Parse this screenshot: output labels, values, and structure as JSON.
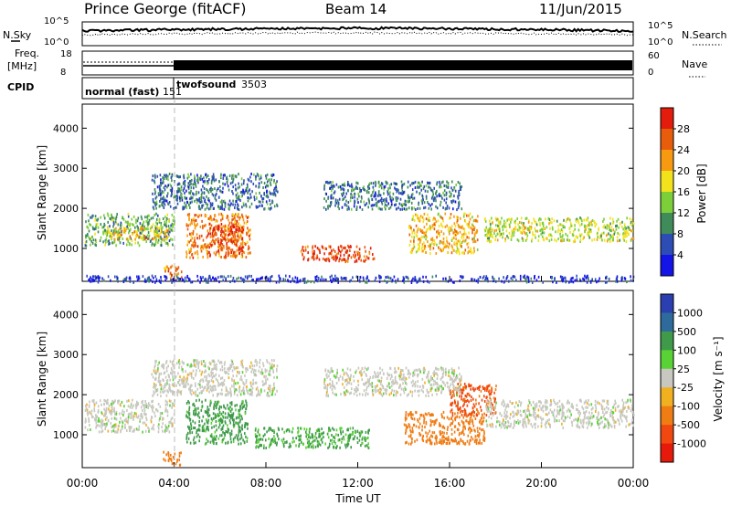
{
  "header": {
    "station": "Prince George (fitACF)",
    "beam": "Beam 14",
    "date": "11/Jun/2015"
  },
  "panels": {
    "nsky_label": "N.Sky",
    "nsearch_label": "N.Search",
    "freq_label_line1": "Freq.",
    "freq_label_line2": "[MHz]",
    "nave_label": "Nave",
    "cpid_label": "CPID",
    "noise_ticks_left": [
      "10^5",
      "10^0"
    ],
    "noise_ticks_right": [
      "10^5",
      "10^0"
    ],
    "freq_ticks": [
      "18",
      "8"
    ],
    "nave_ticks": [
      "60",
      "0"
    ],
    "cpid_programs": [
      {
        "name": "normal (fast)",
        "id": "151",
        "start_hour": 0
      },
      {
        "name": "twofsound",
        "id": "3503",
        "start_hour": 4
      }
    ]
  },
  "chart_data": [
    {
      "type": "heatmap",
      "title": "",
      "xlabel": "",
      "ylabel": "Slant Range [km]",
      "x_range_hours": [
        0,
        24
      ],
      "ylim": [
        180,
        4600
      ],
      "y_ticks": [
        "1000",
        "2000",
        "3000",
        "4000"
      ],
      "colorbar": {
        "label": "Power [dB]",
        "ticks": [
          "4",
          "8",
          "12",
          "16",
          "20",
          "24",
          "28"
        ],
        "colors": [
          "#1414e6",
          "#2d4db5",
          "#3f8c5a",
          "#7dcf3a",
          "#f2e21c",
          "#f79a12",
          "#e85d0c",
          "#e41c0c"
        ]
      },
      "regions": [
        {
          "t0": 0.1,
          "t1": 4.0,
          "r0": 1100,
          "r1": 1900,
          "value": 12
        },
        {
          "t0": 1.0,
          "t1": 3.8,
          "r0": 1250,
          "r1": 1550,
          "value": 20
        },
        {
          "t0": 3.5,
          "t1": 4.3,
          "r0": 250,
          "r1": 600,
          "value": 24
        },
        {
          "t0": 4.5,
          "t1": 7.3,
          "r0": 800,
          "r1": 1900,
          "value": 24
        },
        {
          "t0": 5.5,
          "t1": 7.0,
          "r0": 900,
          "r1": 1600,
          "value": 28
        },
        {
          "t0": 9.5,
          "t1": 12.7,
          "r0": 700,
          "r1": 1100,
          "value": 28
        },
        {
          "t0": 14.2,
          "t1": 17.2,
          "r0": 900,
          "r1": 1900,
          "value": 20
        },
        {
          "t0": 17.5,
          "t1": 24.0,
          "r0": 1200,
          "r1": 1800,
          "value": 16
        },
        {
          "t0": 3.0,
          "t1": 8.5,
          "r0": 2000,
          "r1": 2900,
          "value": 8
        },
        {
          "t0": 10.5,
          "t1": 16.5,
          "r0": 2000,
          "r1": 2700,
          "value": 8
        },
        {
          "t0": 0.1,
          "t1": 24.0,
          "r0": 180,
          "r1": 350,
          "value": 4
        }
      ]
    },
    {
      "type": "heatmap",
      "title": "",
      "xlabel": "Time UT",
      "ylabel": "Slant Range [km]",
      "x_range_hours": [
        0,
        24
      ],
      "x_ticks": [
        "00:00",
        "04:00",
        "08:00",
        "12:00",
        "16:00",
        "20:00",
        "00:00"
      ],
      "ylim": [
        180,
        4600
      ],
      "y_ticks": [
        "1000",
        "2000",
        "3000",
        "4000"
      ],
      "colorbar": {
        "label": "Velocity [m s⁻¹]",
        "ticks": [
          "1000",
          "500",
          "100",
          "25",
          "-25",
          "-100",
          "-500",
          "-1000"
        ],
        "colors": [
          "#2b3fb0",
          "#2e6a9c",
          "#3f9a4a",
          "#58d234",
          "#c8c8c0",
          "#f0b020",
          "#f07c14",
          "#f04810",
          "#e61a0a"
        ]
      },
      "regions": [
        {
          "t0": 0.1,
          "t1": 4.0,
          "r0": 1100,
          "r1": 1900,
          "value": 0
        },
        {
          "t0": 4.5,
          "t1": 7.2,
          "r0": 800,
          "r1": 1900,
          "value": 150
        },
        {
          "t0": 3.5,
          "t1": 4.3,
          "r0": 250,
          "r1": 600,
          "value": -300
        },
        {
          "t0": 7.5,
          "t1": 12.5,
          "r0": 700,
          "r1": 1200,
          "value": 120
        },
        {
          "t0": 14.0,
          "t1": 17.5,
          "r0": 800,
          "r1": 1600,
          "value": -300
        },
        {
          "t0": 16.0,
          "t1": 18.0,
          "r0": 1500,
          "r1": 2300,
          "value": -600
        },
        {
          "t0": 17.5,
          "t1": 24.0,
          "r0": 1200,
          "r1": 1900,
          "value": 0
        },
        {
          "t0": 3.0,
          "t1": 8.5,
          "r0": 2000,
          "r1": 2900,
          "value": 0
        },
        {
          "t0": 10.5,
          "t1": 16.5,
          "r0": 2000,
          "r1": 2700,
          "value": 0
        }
      ]
    }
  ]
}
